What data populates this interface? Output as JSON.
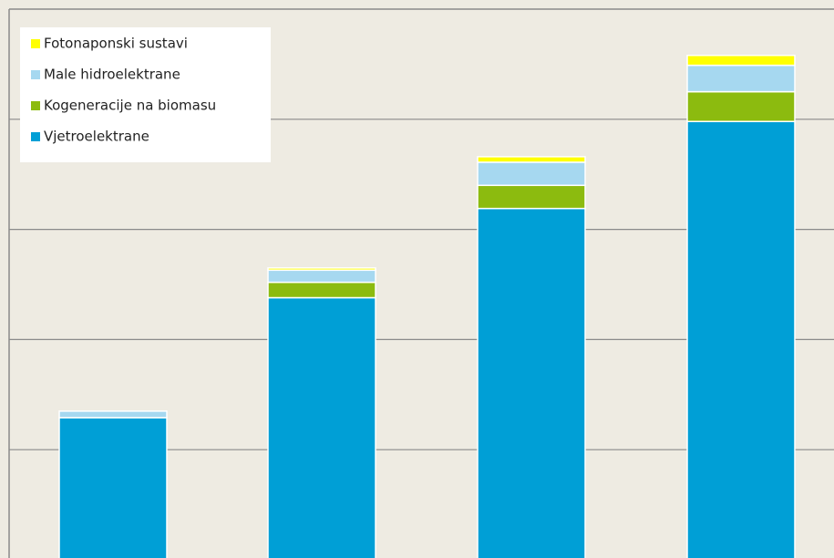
{
  "chart_data": {
    "type": "bar",
    "stacked": true,
    "categories": [
      null,
      null,
      null,
      null
    ],
    "series": [
      {
        "name": "Vjetroelektrane",
        "color": "#009fd6",
        "values": [
          129,
          238,
          319,
          398
        ]
      },
      {
        "name": "Kogeneracije na biomasu",
        "color": "#8cbb0f",
        "values": [
          0,
          14,
          21,
          27
        ]
      },
      {
        "name": "Male hidroelektrane",
        "color": "#a6d8f0",
        "values": [
          6,
          11,
          21,
          24
        ]
      },
      {
        "name": "Fotonaponski sustavi",
        "color": "#ffff00",
        "values": [
          0,
          2,
          5,
          9
        ]
      }
    ],
    "ylim": [
      0,
      500
    ],
    "yticks": [
      100,
      200,
      300,
      400
    ],
    "grid": true,
    "legend": "top-left"
  }
}
